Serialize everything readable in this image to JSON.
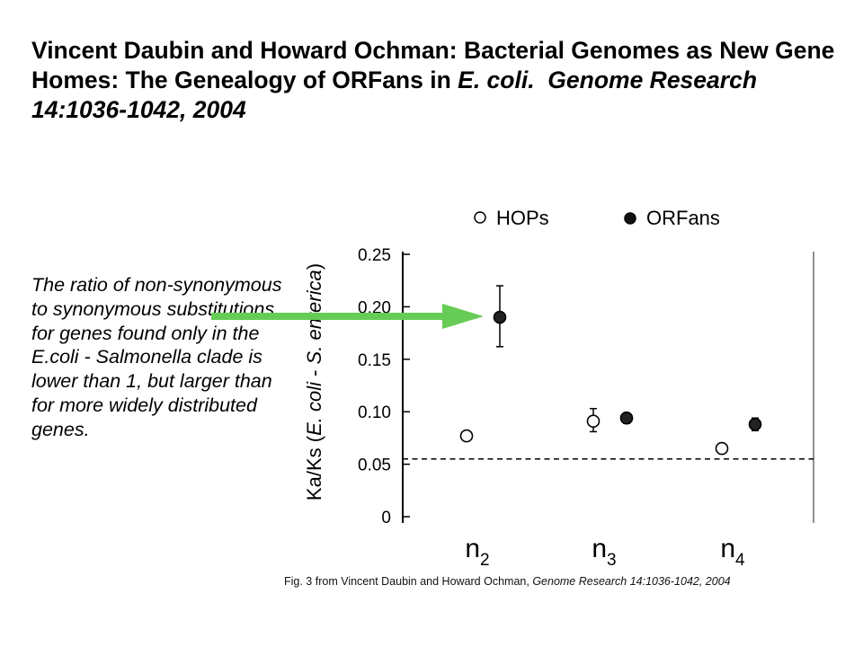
{
  "slide": {
    "title_main": "Vincent Daubin and Howard Ochman: Bacterial Genomes as New Gene Homes: The Genealogy of ORFans in",
    "title_italic": "E. coli.",
    "title_tail": "Genome Research 14:1036-1042, 2004",
    "caption": "The ratio of non-synonymous to synonymous substitutions for genes found only in the E.coli - Salmonella clade is lower than 1, but larger than for more widely distributed genes.",
    "credit_plain": "Fig. 3 from Vincent Daubin and Howard Ochman,",
    "credit_italic": "Genome Research 14:1036-1042, 2004",
    "arrow_color": "#66cc55"
  },
  "chart_data": {
    "type": "scatter",
    "ylabel_parts": [
      "Ka/Ks (",
      "E. coli",
      " - ",
      "S. enterica",
      ")"
    ],
    "categories": [
      "n",
      "n",
      "n"
    ],
    "category_subscripts": [
      "2",
      "3",
      "4"
    ],
    "ylim": [
      0,
      0.25
    ],
    "yticks": [
      0,
      0.05,
      0.1,
      0.15,
      0.2,
      0.25
    ],
    "ytick_labels": [
      "0",
      "0.05",
      "0.10",
      "0.15",
      "0.20",
      "0.25"
    ],
    "reference_line": 0.055,
    "legend_position": "top",
    "grid": false,
    "series": [
      {
        "name": "HOPs",
        "marker": "open-circle",
        "color": "#000000",
        "values": [
          0.077,
          0.091,
          0.065
        ],
        "err_low": [
          0.077,
          0.081,
          0.065
        ],
        "err_high": [
          0.077,
          0.103,
          0.065
        ]
      },
      {
        "name": "ORFans",
        "marker": "filled-circle",
        "color": "#222222",
        "values": [
          0.19,
          0.094,
          0.088
        ],
        "err_low": [
          0.162,
          0.089,
          0.082
        ],
        "err_high": [
          0.22,
          0.098,
          0.094
        ]
      }
    ],
    "arrow_target": {
      "series": 1,
      "index": 0
    }
  }
}
